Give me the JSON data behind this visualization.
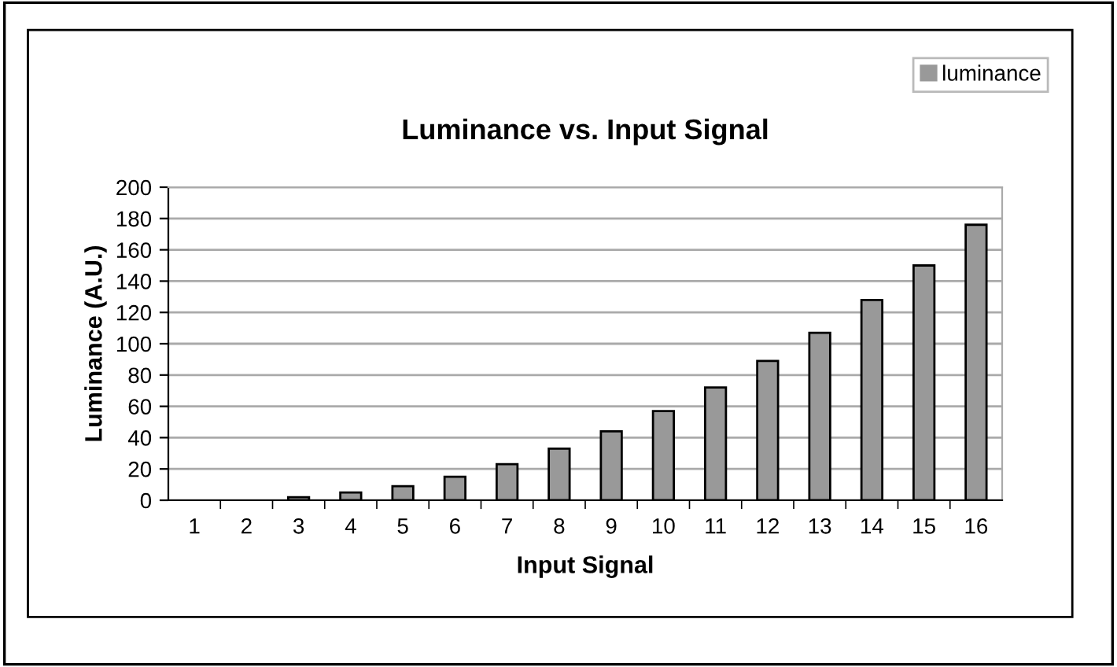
{
  "chart_data": {
    "type": "bar",
    "title": "Luminance vs. Input Signal",
    "xlabel": "Input Signal",
    "ylabel": "Luminance (A.U.)",
    "categories": [
      "1",
      "2",
      "3",
      "4",
      "5",
      "6",
      "7",
      "8",
      "9",
      "10",
      "11",
      "12",
      "13",
      "14",
      "15",
      "16"
    ],
    "series": [
      {
        "name": "luminance",
        "color": "#999999",
        "values": [
          0,
          0,
          2,
          5,
          9,
          15,
          23,
          33,
          44,
          57,
          72,
          89,
          107,
          128,
          150,
          176
        ]
      }
    ],
    "ylim": [
      0,
      200
    ],
    "yticks": [
      0,
      20,
      40,
      60,
      80,
      100,
      120,
      140,
      160,
      180,
      200
    ],
    "grid": "y",
    "legend": "top right"
  }
}
